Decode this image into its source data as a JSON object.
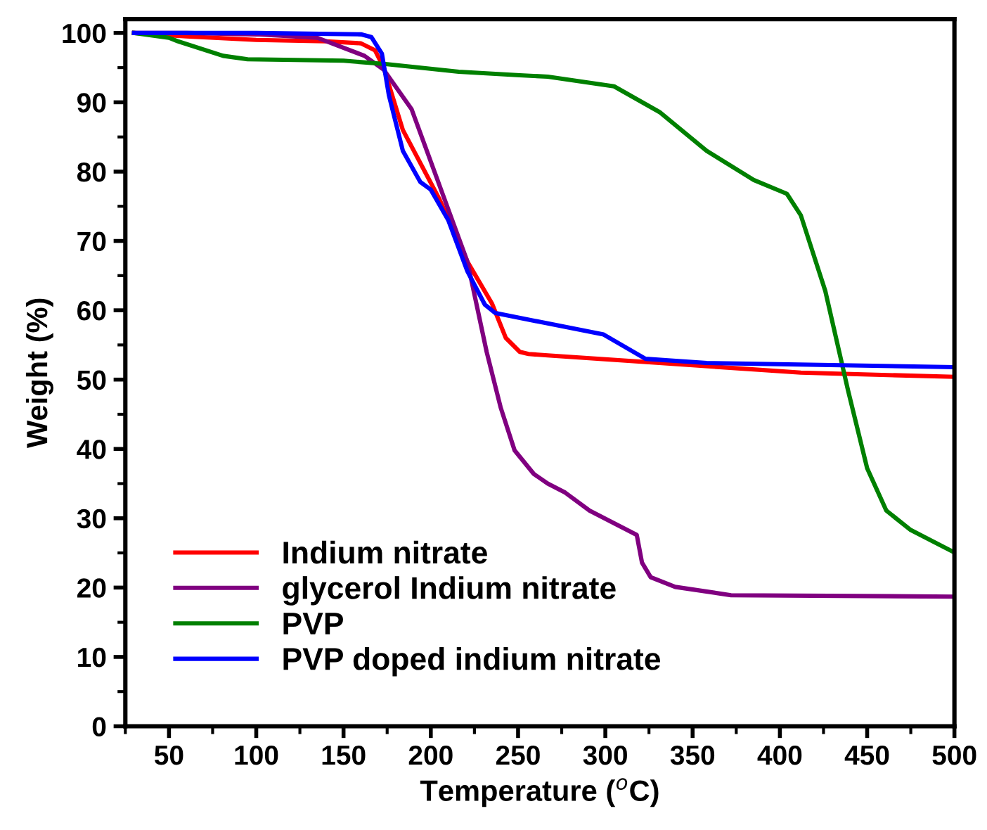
{
  "chart_data": {
    "type": "line",
    "xlabel": "Temperature ($^{o}$C)",
    "ylabel": "Weight (%)",
    "xlim": [
      25,
      500
    ],
    "ylim": [
      0,
      102
    ],
    "xticks": [
      50,
      100,
      150,
      200,
      250,
      300,
      350,
      400,
      450,
      500
    ],
    "yticks": [
      0,
      10,
      20,
      30,
      40,
      50,
      60,
      70,
      80,
      90,
      100
    ],
    "grid": false,
    "legend": "bottom left",
    "line_style": "solid",
    "marker": "none",
    "series": [
      {
        "name": "Indium nitrate",
        "color": "#ff0000",
        "x": [
          30,
          60,
          100,
          140,
          160,
          168,
          173,
          184,
          205,
          221,
          235,
          243,
          251,
          256,
          267,
          331,
          412,
          499
        ],
        "values": [
          100,
          99.5,
          99,
          98.8,
          98.5,
          97.5,
          95,
          86,
          76,
          67,
          61,
          56,
          54,
          53.7,
          53.5,
          52.4,
          51,
          50.4
        ]
      },
      {
        "name": "glycerol Indium nitrate",
        "color": "#800080",
        "x": [
          30,
          60,
          100,
          135,
          162,
          173,
          189,
          205,
          221,
          232,
          240,
          248,
          259,
          267,
          277,
          291,
          318,
          321,
          326,
          340,
          372,
          499
        ],
        "values": [
          100,
          100,
          99.8,
          99.3,
          96.7,
          94.7,
          89,
          78,
          67,
          54,
          46,
          39.8,
          36.4,
          35,
          33.7,
          31.1,
          27.6,
          23.6,
          21.5,
          20.1,
          18.9,
          18.7
        ]
      },
      {
        "name": "PVP",
        "color": "#008000",
        "x": [
          30,
          50,
          55,
          81,
          95,
          150,
          175,
          216,
          251,
          267,
          305,
          331,
          358,
          385,
          404,
          412,
          426,
          439,
          450,
          461,
          475,
          499
        ],
        "values": [
          100,
          99.3,
          98.8,
          96.7,
          96.2,
          96,
          95.5,
          94.4,
          93.9,
          93.7,
          92.3,
          88.6,
          83,
          78.8,
          76.8,
          73.7,
          62.8,
          48.5,
          37.2,
          31.1,
          28.3,
          25.2
        ]
      },
      {
        "name": "PVP doped indium nitrate",
        "color": "#0000ff",
        "x": [
          30,
          100,
          160,
          166,
          172,
          176,
          184,
          194,
          200,
          210,
          221,
          231,
          237,
          267,
          299,
          323,
          358,
          499
        ],
        "values": [
          100,
          100,
          99.8,
          99.4,
          97,
          91,
          83,
          78.5,
          77.4,
          73,
          65.6,
          60.8,
          59.6,
          58.1,
          56.5,
          53,
          52.4,
          51.8
        ]
      }
    ]
  }
}
